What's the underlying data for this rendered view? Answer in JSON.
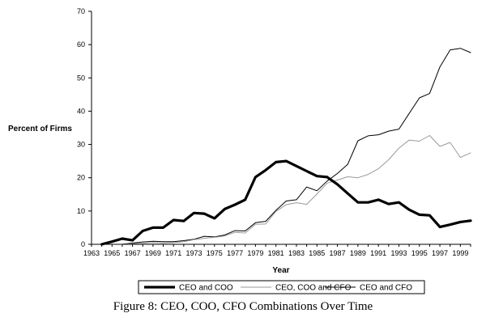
{
  "caption": "Figure 8: CEO, COO, CFO Combinations Over Time",
  "chart_data": {
    "type": "line",
    "title": "",
    "xlabel": "Year",
    "ylabel": "Percent of Firms",
    "xlim": [
      1963,
      2000
    ],
    "ylim": [
      0,
      70
    ],
    "yticks": [
      0,
      10,
      20,
      30,
      40,
      50,
      60,
      70
    ],
    "xtick_labels": [
      "1963",
      "1965",
      "1967",
      "1969",
      "1971",
      "1973",
      "1975",
      "1977",
      "1979",
      "1981",
      "1983",
      "1985",
      "1987",
      "1989",
      "1991",
      "1993",
      "1995",
      "1997",
      "1999"
    ],
    "grid": false,
    "legend_position": "bottom",
    "x": [
      1964,
      1965,
      1966,
      1967,
      1968,
      1969,
      1970,
      1971,
      1972,
      1973,
      1974,
      1975,
      1976,
      1977,
      1978,
      1979,
      1980,
      1981,
      1982,
      1983,
      1984,
      1985,
      1986,
      1987,
      1988,
      1989,
      1990,
      1991,
      1992,
      1993,
      1994,
      1995,
      1996,
      1997,
      1998,
      1999,
      2000
    ],
    "series": [
      {
        "name": "CEO and COO",
        "color": "#000000",
        "width": "thick",
        "values": [
          0,
          0.8,
          1.7,
          1.2,
          4,
          5,
          5,
          7.3,
          7,
          9.4,
          9.2,
          7.8,
          10.6,
          11.9,
          13.4,
          20.2,
          22.3,
          24.7,
          25,
          23.5,
          22,
          20.5,
          20.2,
          18,
          15.3,
          12.6,
          12.6,
          13.4,
          12.1,
          12.6,
          10.4,
          8.9,
          8.7,
          5.2,
          5.9,
          6.7,
          7.1
        ]
      },
      {
        "name": "CEO, COO and CFO",
        "color": "#999999",
        "width": "thin",
        "values": [
          0,
          0,
          0,
          0.2,
          0.3,
          0.5,
          0.4,
          0.5,
          0.8,
          1.4,
          1.8,
          2.1,
          2.5,
          3.6,
          3.4,
          6,
          6.1,
          9.9,
          11.9,
          12.5,
          12,
          15.1,
          18.4,
          19.3,
          20.3,
          20,
          21,
          22.7,
          25.4,
          28.9,
          31.3,
          31,
          32.7,
          29.4,
          30.6,
          26.1,
          27.5
        ]
      },
      {
        "name": "CEO and CFO",
        "color": "#000000",
        "width": "thin",
        "values": [
          0,
          0,
          0,
          0.4,
          0.7,
          0.9,
          0.8,
          0.8,
          1.1,
          1.5,
          2.4,
          2.2,
          2.8,
          4.1,
          4,
          6.5,
          6.9,
          10.2,
          13,
          13.4,
          17.2,
          16.1,
          19,
          21.3,
          24,
          31.1,
          32.6,
          32.9,
          34,
          34.6,
          39.3,
          44,
          45.3,
          53.3,
          58.4,
          58.9,
          57.6
        ]
      }
    ]
  }
}
